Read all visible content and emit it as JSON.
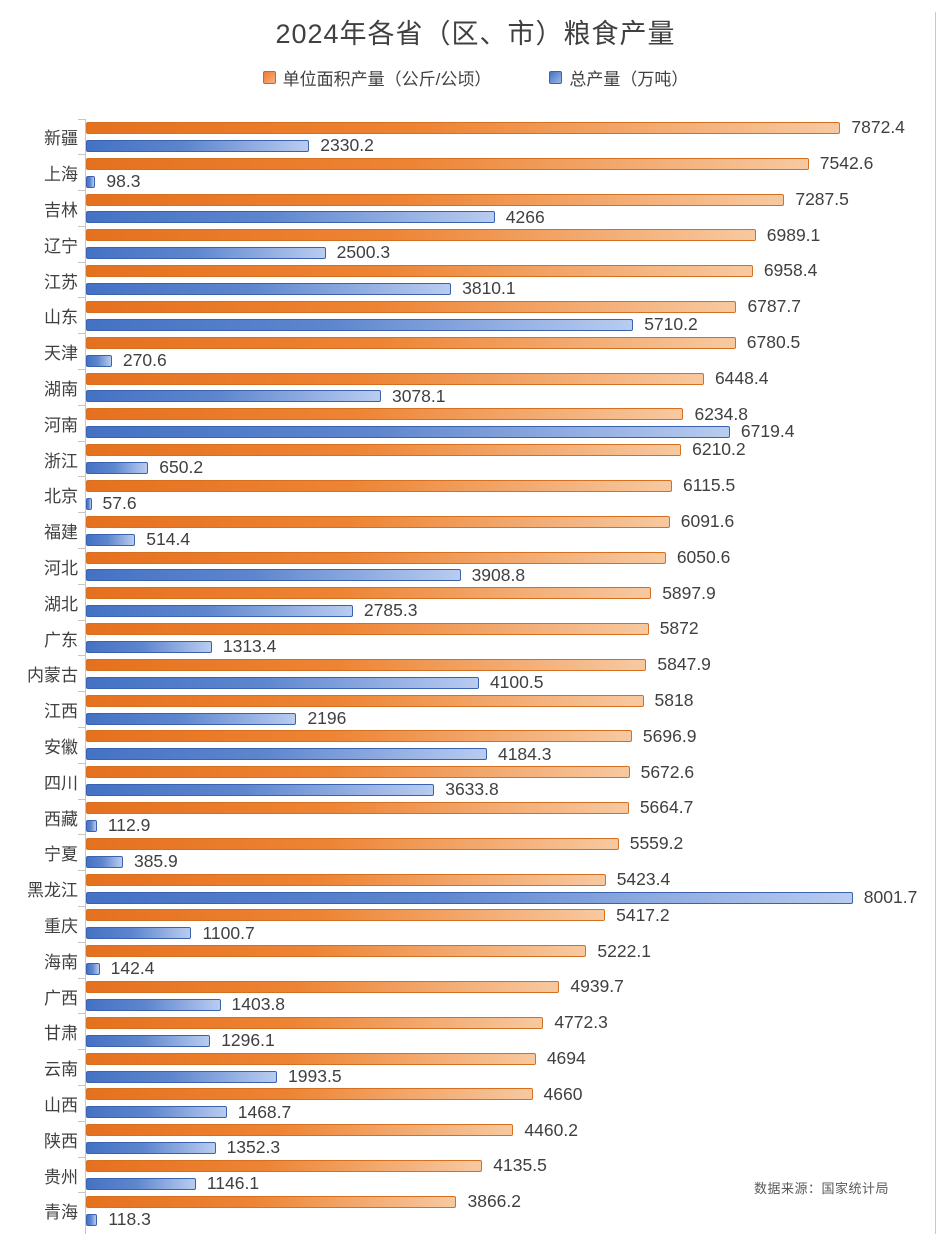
{
  "source": "数据来源：国家统计局",
  "colors": {
    "orange_fill": "#ED7D31",
    "orange_border": "#D4701F",
    "blue_fill": "#4472C4",
    "blue_border": "#3A62AE",
    "label_text": "#404040",
    "axis_line": "#C6C6C6"
  },
  "chart_data": {
    "type": "bar",
    "orientation": "horizontal",
    "title": "2024年各省（区、市）粮食产量",
    "legend_position": "top",
    "grid": false,
    "xlim": [
      0,
      8870
    ],
    "categories": [
      "新疆",
      "上海",
      "吉林",
      "辽宁",
      "江苏",
      "山东",
      "天津",
      "湖南",
      "河南",
      "浙江",
      "北京",
      "福建",
      "河北",
      "湖北",
      "广东",
      "内蒙古",
      "江西",
      "安徽",
      "四川",
      "西藏",
      "宁夏",
      "黑龙江",
      "重庆",
      "海南",
      "广西",
      "甘肃",
      "云南",
      "山西",
      "陕西",
      "贵州",
      "青海"
    ],
    "series": [
      {
        "name": "单位面积产量（公斤/公顷）",
        "color": "#ED7D31",
        "values": [
          7872.4,
          7542.6,
          7287.5,
          6989.1,
          6958.4,
          6787.7,
          6780.5,
          6448.4,
          6234.8,
          6210.2,
          6115.5,
          6091.6,
          6050.6,
          5897.9,
          5872,
          5847.9,
          5818,
          5696.9,
          5672.6,
          5664.7,
          5559.2,
          5423.4,
          5417.2,
          5222.1,
          4939.7,
          4772.3,
          4694,
          4660,
          4460.2,
          4135.5,
          3866.2
        ]
      },
      {
        "name": "总产量（万吨）",
        "color": "#4472C4",
        "values": [
          2330.2,
          98.3,
          4266,
          2500.3,
          3810.1,
          5710.2,
          270.6,
          3078.1,
          6719.4,
          650.2,
          57.6,
          514.4,
          3908.8,
          2785.3,
          1313.4,
          4100.5,
          2196,
          4184.3,
          3633.8,
          112.9,
          385.9,
          8001.7,
          1100.7,
          142.4,
          1403.8,
          1296.1,
          1993.5,
          1468.7,
          1352.3,
          1146.1,
          118.3
        ]
      }
    ]
  }
}
